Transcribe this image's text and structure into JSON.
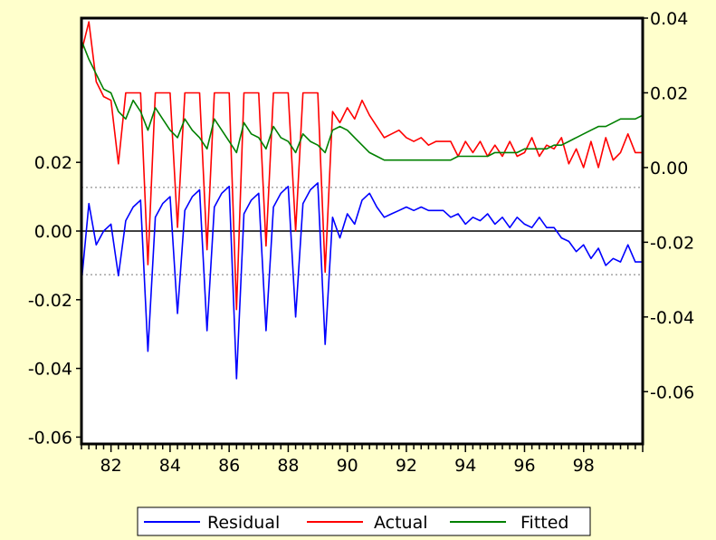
{
  "colors": {
    "background": "#FFFFCC",
    "plot_background": "#FFFFFF",
    "residual": "#0000FF",
    "actual": "#FF0000",
    "fitted": "#008000"
  },
  "chart_data": {
    "type": "line",
    "title": "",
    "grid": false,
    "legend_position": "bottom",
    "x": {
      "range": [
        1981,
        2000
      ],
      "tick_labels": [
        "82",
        "84",
        "86",
        "88",
        "90",
        "92",
        "94",
        "96",
        "98"
      ],
      "tick_values": [
        1982,
        1984,
        1986,
        1988,
        1990,
        1992,
        1994,
        1996,
        1998
      ]
    },
    "y_left": {
      "range": [
        -0.062,
        0.062
      ],
      "tick_labels": [
        "0.02",
        "0.00",
        "-0.02",
        "-0.04",
        "-0.06"
      ],
      "tick_values": [
        0.02,
        0.0,
        -0.02,
        -0.04,
        -0.06
      ],
      "zero_line": 0.0,
      "reference_lines": [
        0.0127,
        -0.0127
      ]
    },
    "y_right": {
      "range": [
        -0.074,
        0.04
      ],
      "tick_labels": [
        "0.04",
        "0.02",
        "0.00",
        "-0.02",
        "-0.04",
        "-0.06"
      ],
      "tick_values": [
        0.04,
        0.02,
        0.0,
        -0.02,
        -0.04,
        -0.06
      ]
    },
    "series": [
      {
        "name": "Residual",
        "axis": "left",
        "points": [
          [
            1981.0,
            -0.015
          ],
          [
            1981.25,
            0.008
          ],
          [
            1981.5,
            -0.004
          ],
          [
            1981.75,
            0.0
          ],
          [
            1982.0,
            0.002
          ],
          [
            1982.25,
            -0.013
          ],
          [
            1982.5,
            0.003
          ],
          [
            1982.75,
            0.007
          ],
          [
            1983.0,
            0.009
          ],
          [
            1983.25,
            -0.035
          ],
          [
            1983.5,
            0.004
          ],
          [
            1983.75,
            0.008
          ],
          [
            1984.0,
            0.01
          ],
          [
            1984.25,
            -0.024
          ],
          [
            1984.5,
            0.006
          ],
          [
            1984.75,
            0.01
          ],
          [
            1985.0,
            0.012
          ],
          [
            1985.25,
            -0.029
          ],
          [
            1985.5,
            0.007
          ],
          [
            1985.75,
            0.011
          ],
          [
            1986.0,
            0.013
          ],
          [
            1986.25,
            -0.043
          ],
          [
            1986.5,
            0.005
          ],
          [
            1986.75,
            0.009
          ],
          [
            1987.0,
            0.011
          ],
          [
            1987.25,
            -0.029
          ],
          [
            1987.5,
            0.007
          ],
          [
            1987.75,
            0.011
          ],
          [
            1988.0,
            0.013
          ],
          [
            1988.25,
            -0.025
          ],
          [
            1988.5,
            0.008
          ],
          [
            1988.75,
            0.012
          ],
          [
            1989.0,
            0.014
          ],
          [
            1989.25,
            -0.033
          ],
          [
            1989.5,
            0.004
          ],
          [
            1989.75,
            -0.002
          ],
          [
            1990.0,
            0.005
          ],
          [
            1990.25,
            0.002
          ],
          [
            1990.5,
            0.009
          ],
          [
            1990.75,
            0.011
          ],
          [
            1991.0,
            0.007
          ],
          [
            1991.25,
            0.004
          ],
          [
            1991.5,
            0.005
          ],
          [
            1991.75,
            0.006
          ],
          [
            1992.0,
            0.007
          ],
          [
            1992.25,
            0.006
          ],
          [
            1992.5,
            0.007
          ],
          [
            1992.75,
            0.006
          ],
          [
            1993.0,
            0.006
          ],
          [
            1993.25,
            0.006
          ],
          [
            1993.5,
            0.004
          ],
          [
            1993.75,
            0.005
          ],
          [
            1994.0,
            0.002
          ],
          [
            1994.25,
            0.004
          ],
          [
            1994.5,
            0.003
          ],
          [
            1994.75,
            0.005
          ],
          [
            1995.0,
            0.002
          ],
          [
            1995.25,
            0.004
          ],
          [
            1995.5,
            0.001
          ],
          [
            1995.75,
            0.004
          ],
          [
            1996.0,
            0.002
          ],
          [
            1996.25,
            0.001
          ],
          [
            1996.5,
            0.004
          ],
          [
            1996.75,
            0.001
          ],
          [
            1997.0,
            0.001
          ],
          [
            1997.25,
            -0.002
          ],
          [
            1997.5,
            -0.003
          ],
          [
            1997.75,
            -0.006
          ],
          [
            1998.0,
            -0.004
          ],
          [
            1998.25,
            -0.008
          ],
          [
            1998.5,
            -0.005
          ],
          [
            1998.75,
            -0.01
          ],
          [
            1999.0,
            -0.008
          ],
          [
            1999.25,
            -0.009
          ],
          [
            1999.5,
            -0.004
          ],
          [
            1999.75,
            -0.009
          ],
          [
            2000.0,
            -0.009
          ]
        ]
      },
      {
        "name": "Actual",
        "axis": "right",
        "points": [
          [
            1981.0,
            0.031
          ],
          [
            1981.25,
            0.039
          ],
          [
            1981.5,
            0.023
          ],
          [
            1981.75,
            0.019
          ],
          [
            1982.0,
            0.018
          ],
          [
            1982.25,
            0.001
          ],
          [
            1982.5,
            0.02
          ],
          [
            1982.75,
            0.02
          ],
          [
            1983.0,
            0.02
          ],
          [
            1983.25,
            -0.026
          ],
          [
            1983.5,
            0.02
          ],
          [
            1983.75,
            0.02
          ],
          [
            1984.0,
            0.02
          ],
          [
            1984.25,
            -0.016
          ],
          [
            1984.5,
            0.02
          ],
          [
            1984.75,
            0.02
          ],
          [
            1985.0,
            0.02
          ],
          [
            1985.25,
            -0.022
          ],
          [
            1985.5,
            0.02
          ],
          [
            1985.75,
            0.02
          ],
          [
            1986.0,
            0.02
          ],
          [
            1986.25,
            -0.038
          ],
          [
            1986.5,
            0.02
          ],
          [
            1986.75,
            0.02
          ],
          [
            1987.0,
            0.02
          ],
          [
            1987.25,
            -0.021
          ],
          [
            1987.5,
            0.02
          ],
          [
            1987.75,
            0.02
          ],
          [
            1988.0,
            0.02
          ],
          [
            1988.25,
            -0.017
          ],
          [
            1988.5,
            0.02
          ],
          [
            1988.75,
            0.02
          ],
          [
            1989.0,
            0.02
          ],
          [
            1989.25,
            -0.028
          ],
          [
            1989.5,
            0.015
          ],
          [
            1989.75,
            0.012
          ],
          [
            1990.0,
            0.016
          ],
          [
            1990.25,
            0.013
          ],
          [
            1990.5,
            0.018
          ],
          [
            1990.75,
            0.014
          ],
          [
            1991.0,
            0.011
          ],
          [
            1991.25,
            0.008
          ],
          [
            1991.5,
            0.009
          ],
          [
            1991.75,
            0.01
          ],
          [
            1992.0,
            0.008
          ],
          [
            1992.25,
            0.007
          ],
          [
            1992.5,
            0.008
          ],
          [
            1992.75,
            0.006
          ],
          [
            1993.0,
            0.007
          ],
          [
            1993.25,
            0.007
          ],
          [
            1993.5,
            0.007
          ],
          [
            1993.75,
            0.003
          ],
          [
            1994.0,
            0.007
          ],
          [
            1994.25,
            0.004
          ],
          [
            1994.5,
            0.007
          ],
          [
            1994.75,
            0.003
          ],
          [
            1995.0,
            0.006
          ],
          [
            1995.25,
            0.003
          ],
          [
            1995.5,
            0.007
          ],
          [
            1995.75,
            0.003
          ],
          [
            1996.0,
            0.004
          ],
          [
            1996.25,
            0.008
          ],
          [
            1996.5,
            0.003
          ],
          [
            1996.75,
            0.006
          ],
          [
            1997.0,
            0.005
          ],
          [
            1997.25,
            0.008
          ],
          [
            1997.5,
            0.001
          ],
          [
            1997.75,
            0.005
          ],
          [
            1998.0,
            0.0
          ],
          [
            1998.25,
            0.007
          ],
          [
            1998.5,
            0.0
          ],
          [
            1998.75,
            0.008
          ],
          [
            1999.0,
            0.002
          ],
          [
            1999.25,
            0.004
          ],
          [
            1999.5,
            0.009
          ],
          [
            1999.75,
            0.004
          ],
          [
            2000.0,
            0.004
          ]
        ]
      },
      {
        "name": "Fitted",
        "axis": "right",
        "points": [
          [
            1981.0,
            0.034
          ],
          [
            1981.25,
            0.029
          ],
          [
            1981.5,
            0.025
          ],
          [
            1981.75,
            0.021
          ],
          [
            1982.0,
            0.02
          ],
          [
            1982.25,
            0.015
          ],
          [
            1982.5,
            0.013
          ],
          [
            1982.75,
            0.018
          ],
          [
            1983.0,
            0.015
          ],
          [
            1983.25,
            0.01
          ],
          [
            1983.5,
            0.016
          ],
          [
            1983.75,
            0.013
          ],
          [
            1984.0,
            0.01
          ],
          [
            1984.25,
            0.008
          ],
          [
            1984.5,
            0.013
          ],
          [
            1984.75,
            0.01
          ],
          [
            1985.0,
            0.008
          ],
          [
            1985.25,
            0.005
          ],
          [
            1985.5,
            0.013
          ],
          [
            1985.75,
            0.01
          ],
          [
            1986.0,
            0.007
          ],
          [
            1986.25,
            0.004
          ],
          [
            1986.5,
            0.012
          ],
          [
            1986.75,
            0.009
          ],
          [
            1987.0,
            0.008
          ],
          [
            1987.25,
            0.005
          ],
          [
            1987.5,
            0.011
          ],
          [
            1987.75,
            0.008
          ],
          [
            1988.0,
            0.007
          ],
          [
            1988.25,
            0.004
          ],
          [
            1988.5,
            0.009
          ],
          [
            1988.75,
            0.007
          ],
          [
            1989.0,
            0.006
          ],
          [
            1989.25,
            0.004
          ],
          [
            1989.5,
            0.01
          ],
          [
            1989.75,
            0.011
          ],
          [
            1990.0,
            0.01
          ],
          [
            1990.25,
            0.008
          ],
          [
            1990.5,
            0.006
          ],
          [
            1990.75,
            0.004
          ],
          [
            1991.0,
            0.003
          ],
          [
            1991.25,
            0.002
          ],
          [
            1991.5,
            0.002
          ],
          [
            1991.75,
            0.002
          ],
          [
            1992.0,
            0.002
          ],
          [
            1992.25,
            0.002
          ],
          [
            1992.5,
            0.002
          ],
          [
            1992.75,
            0.002
          ],
          [
            1993.0,
            0.002
          ],
          [
            1993.25,
            0.002
          ],
          [
            1993.5,
            0.002
          ],
          [
            1993.75,
            0.003
          ],
          [
            1994.0,
            0.003
          ],
          [
            1994.25,
            0.003
          ],
          [
            1994.5,
            0.003
          ],
          [
            1994.75,
            0.003
          ],
          [
            1995.0,
            0.004
          ],
          [
            1995.25,
            0.004
          ],
          [
            1995.5,
            0.004
          ],
          [
            1995.75,
            0.004
          ],
          [
            1996.0,
            0.005
          ],
          [
            1996.25,
            0.005
          ],
          [
            1996.5,
            0.005
          ],
          [
            1996.75,
            0.005
          ],
          [
            1997.0,
            0.006
          ],
          [
            1997.25,
            0.006
          ],
          [
            1997.5,
            0.007
          ],
          [
            1997.75,
            0.008
          ],
          [
            1998.0,
            0.009
          ],
          [
            1998.25,
            0.01
          ],
          [
            1998.5,
            0.011
          ],
          [
            1998.75,
            0.011
          ],
          [
            1999.0,
            0.012
          ],
          [
            1999.25,
            0.013
          ],
          [
            1999.5,
            0.013
          ],
          [
            1999.75,
            0.013
          ],
          [
            2000.0,
            0.014
          ]
        ]
      }
    ]
  }
}
